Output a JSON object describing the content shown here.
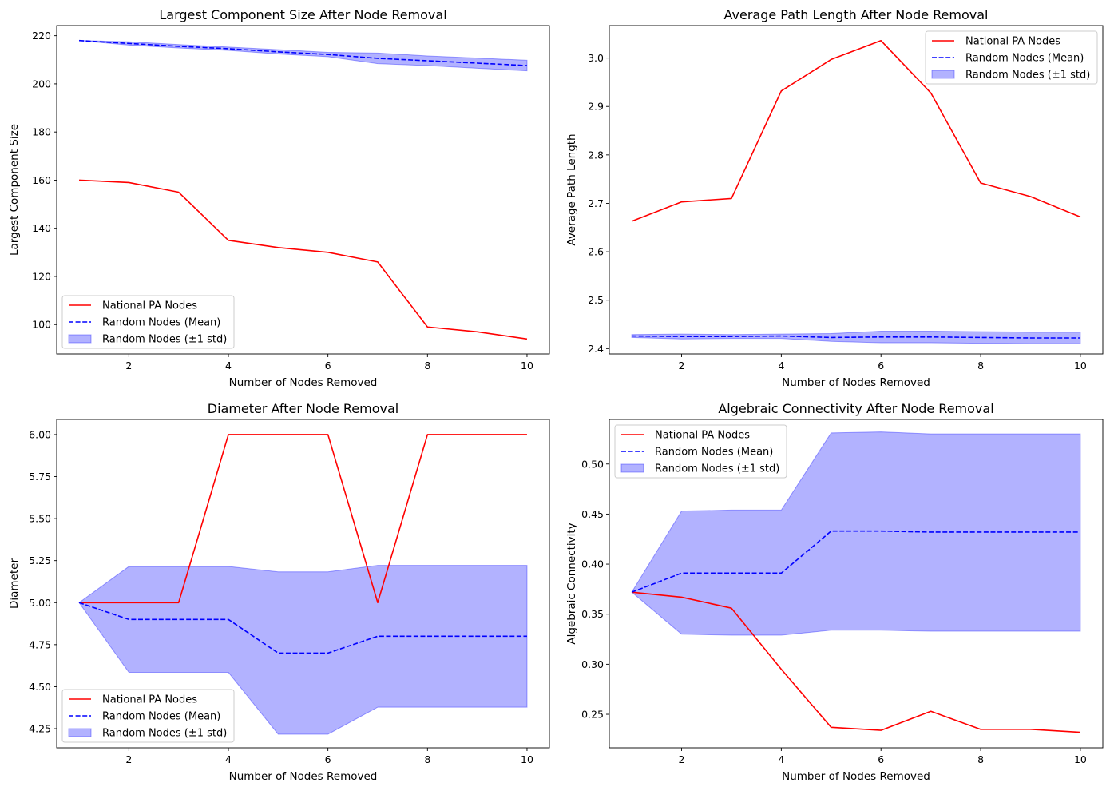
{
  "chart_data": [
    {
      "type": "line",
      "title": "Largest Component Size After Node Removal",
      "xlabel": "Number of Nodes Removed",
      "ylabel": "Largest Component Size",
      "xlim": [
        0.55,
        10.45
      ],
      "ylim": [
        87.8,
        224.2
      ],
      "xticks": [
        2,
        4,
        6,
        8,
        10
      ],
      "yticks": [
        100,
        120,
        140,
        160,
        180,
        200,
        220
      ],
      "ytick_decimals": 0,
      "legend_position": "lower-left",
      "x": [
        1,
        2,
        3,
        4,
        5,
        6,
        7,
        8,
        9,
        10
      ],
      "series": [
        {
          "name": "National PA Nodes",
          "style": "solid",
          "color": "#ff0000",
          "values": [
            160,
            159,
            155,
            135,
            132,
            130,
            126,
            99,
            97,
            94
          ]
        },
        {
          "name": "Random Nodes (Mean)",
          "style": "dashed",
          "color": "#0000ff",
          "values": [
            218,
            216.8,
            215.6,
            214.6,
            213.3,
            212.2,
            210.6,
            209.6,
            208.6,
            207.6
          ]
        }
      ],
      "band": {
        "name": "Random Nodes (±1 std)",
        "color": "#0000ff",
        "opacity": 0.3,
        "lower": [
          218,
          216.1,
          214.9,
          213.9,
          212.4,
          211.3,
          208.4,
          207.6,
          206.5,
          205.4
        ],
        "upper": [
          218,
          217.5,
          216.3,
          215.3,
          214.2,
          213.1,
          212.8,
          211.6,
          210.7,
          209.8
        ]
      }
    },
    {
      "type": "line",
      "title": "Average Path Length After Node Removal",
      "xlabel": "Number of Nodes Removed",
      "ylabel": "Average Path Length",
      "xlim": [
        0.55,
        10.45
      ],
      "ylim": [
        2.389,
        3.067
      ],
      "xticks": [
        2,
        4,
        6,
        8,
        10
      ],
      "yticks": [
        2.4,
        2.5,
        2.6,
        2.7,
        2.8,
        2.9,
        3.0
      ],
      "ytick_decimals": 1,
      "legend_position": "upper-right",
      "x": [
        1,
        2,
        3,
        4,
        5,
        6,
        7,
        8,
        9,
        10
      ],
      "series": [
        {
          "name": "National PA Nodes",
          "style": "solid",
          "color": "#ff0000",
          "values": [
            2.663,
            2.703,
            2.71,
            2.932,
            2.997,
            3.036,
            2.928,
            2.742,
            2.714,
            2.672
          ]
        },
        {
          "name": "Random Nodes (Mean)",
          "style": "dashed",
          "color": "#0000ff",
          "values": [
            2.426,
            2.425,
            2.425,
            2.426,
            2.423,
            2.424,
            2.424,
            2.423,
            2.422,
            2.422
          ]
        }
      ],
      "band": {
        "name": "Random Nodes (±1 std)",
        "color": "#0000ff",
        "opacity": 0.3,
        "lower": [
          2.423,
          2.42,
          2.421,
          2.421,
          2.415,
          2.412,
          2.412,
          2.411,
          2.41,
          2.41
        ],
        "upper": [
          2.429,
          2.43,
          2.429,
          2.43,
          2.431,
          2.436,
          2.436,
          2.435,
          2.434,
          2.434
        ]
      }
    },
    {
      "type": "line",
      "title": "Diameter After Node Removal",
      "xlabel": "Number of Nodes Removed",
      "ylabel": "Diameter",
      "xlim": [
        0.55,
        10.45
      ],
      "ylim": [
        4.136,
        6.09
      ],
      "xticks": [
        2,
        4,
        6,
        8,
        10
      ],
      "yticks": [
        4.25,
        4.5,
        4.75,
        5.0,
        5.25,
        5.5,
        5.75,
        6.0
      ],
      "ytick_decimals": 2,
      "legend_position": "lower-left",
      "x": [
        1,
        2,
        3,
        4,
        5,
        6,
        7,
        8,
        9,
        10
      ],
      "series": [
        {
          "name": "National PA Nodes",
          "style": "solid",
          "color": "#ff0000",
          "values": [
            5,
            5,
            5,
            6,
            6,
            6,
            5,
            6,
            6,
            6
          ]
        },
        {
          "name": "Random Nodes (Mean)",
          "style": "dashed",
          "color": "#0000ff",
          "values": [
            5.0,
            4.9,
            4.9,
            4.9,
            4.7,
            4.7,
            4.8,
            4.8,
            4.8,
            4.8
          ]
        }
      ],
      "band": {
        "name": "Random Nodes (±1 std)",
        "color": "#0000ff",
        "opacity": 0.3,
        "lower": [
          5.0,
          4.585,
          4.585,
          4.585,
          4.217,
          4.217,
          4.378,
          4.378,
          4.378,
          4.378
        ],
        "upper": [
          5.0,
          5.215,
          5.215,
          5.215,
          5.183,
          5.183,
          5.222,
          5.222,
          5.222,
          5.222
        ]
      }
    },
    {
      "type": "line",
      "title": "Algebraic Connectivity After Node Removal",
      "xlabel": "Number of Nodes Removed",
      "ylabel": "Algebraic Connectivity",
      "xlim": [
        0.55,
        10.45
      ],
      "ylim": [
        0.2165,
        0.5445
      ],
      "xticks": [
        2,
        4,
        6,
        8,
        10
      ],
      "yticks": [
        0.25,
        0.3,
        0.35,
        0.4,
        0.45,
        0.5
      ],
      "ytick_decimals": 2,
      "legend_position": "upper-left",
      "x": [
        1,
        2,
        3,
        4,
        5,
        6,
        7,
        8,
        9,
        10
      ],
      "series": [
        {
          "name": "National PA Nodes",
          "style": "solid",
          "color": "#ff0000",
          "values": [
            0.372,
            0.367,
            0.356,
            0.295,
            0.237,
            0.234,
            0.253,
            0.235,
            0.235,
            0.232
          ]
        },
        {
          "name": "Random Nodes (Mean)",
          "style": "dashed",
          "color": "#0000ff",
          "values": [
            0.372,
            0.391,
            0.391,
            0.391,
            0.433,
            0.433,
            0.432,
            0.432,
            0.432,
            0.432
          ]
        }
      ],
      "band": {
        "name": "Random Nodes (±1 std)",
        "color": "#0000ff",
        "opacity": 0.3,
        "lower": [
          0.372,
          0.33,
          0.329,
          0.329,
          0.334,
          0.334,
          0.333,
          0.333,
          0.333,
          0.333
        ],
        "upper": [
          0.372,
          0.453,
          0.454,
          0.454,
          0.531,
          0.532,
          0.53,
          0.53,
          0.53,
          0.53
        ]
      }
    }
  ]
}
